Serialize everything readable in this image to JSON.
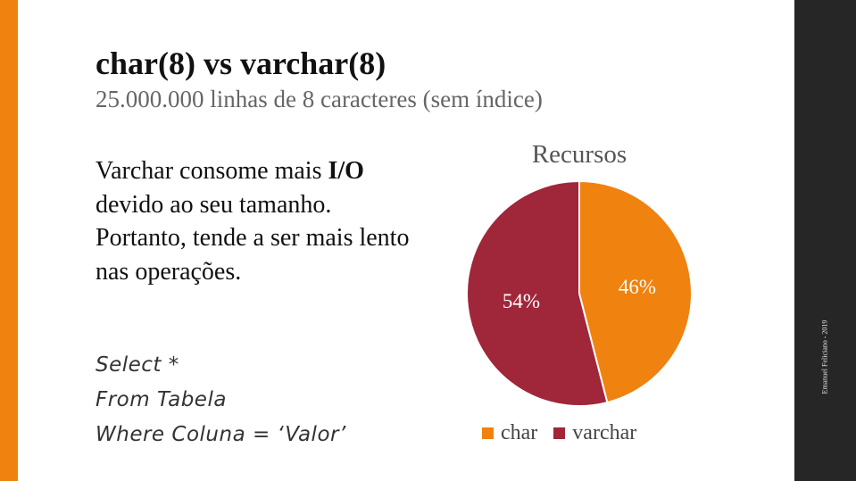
{
  "slide": {
    "title": "char(8) vs varchar(8)",
    "subtitle": "25.000.000 linhas de 8 caracteres  (sem índice)",
    "body": {
      "part1": "Varchar consome mais ",
      "emphasis": "I/O",
      "part2": " devido ao seu tamanho. Portanto, tende a ser mais lento nas operações."
    },
    "code_lines": [
      "Select *",
      "From Tabela",
      "Where Coluna = ‘Valor’"
    ],
    "side_credit": "Emanuel Feliciano  -  2019",
    "colors": {
      "accent": "#f0820f",
      "char": "#f0820f",
      "varchar": "#a0263a",
      "side_panel": "#262626"
    }
  },
  "chart_data": {
    "type": "pie",
    "title": "Recursos",
    "categories": [
      "char",
      "varchar"
    ],
    "values": [
      46,
      54
    ],
    "labels": [
      "46%",
      "54%"
    ],
    "colors": [
      "#f0820f",
      "#a0263a"
    ],
    "legend": "bottom"
  }
}
